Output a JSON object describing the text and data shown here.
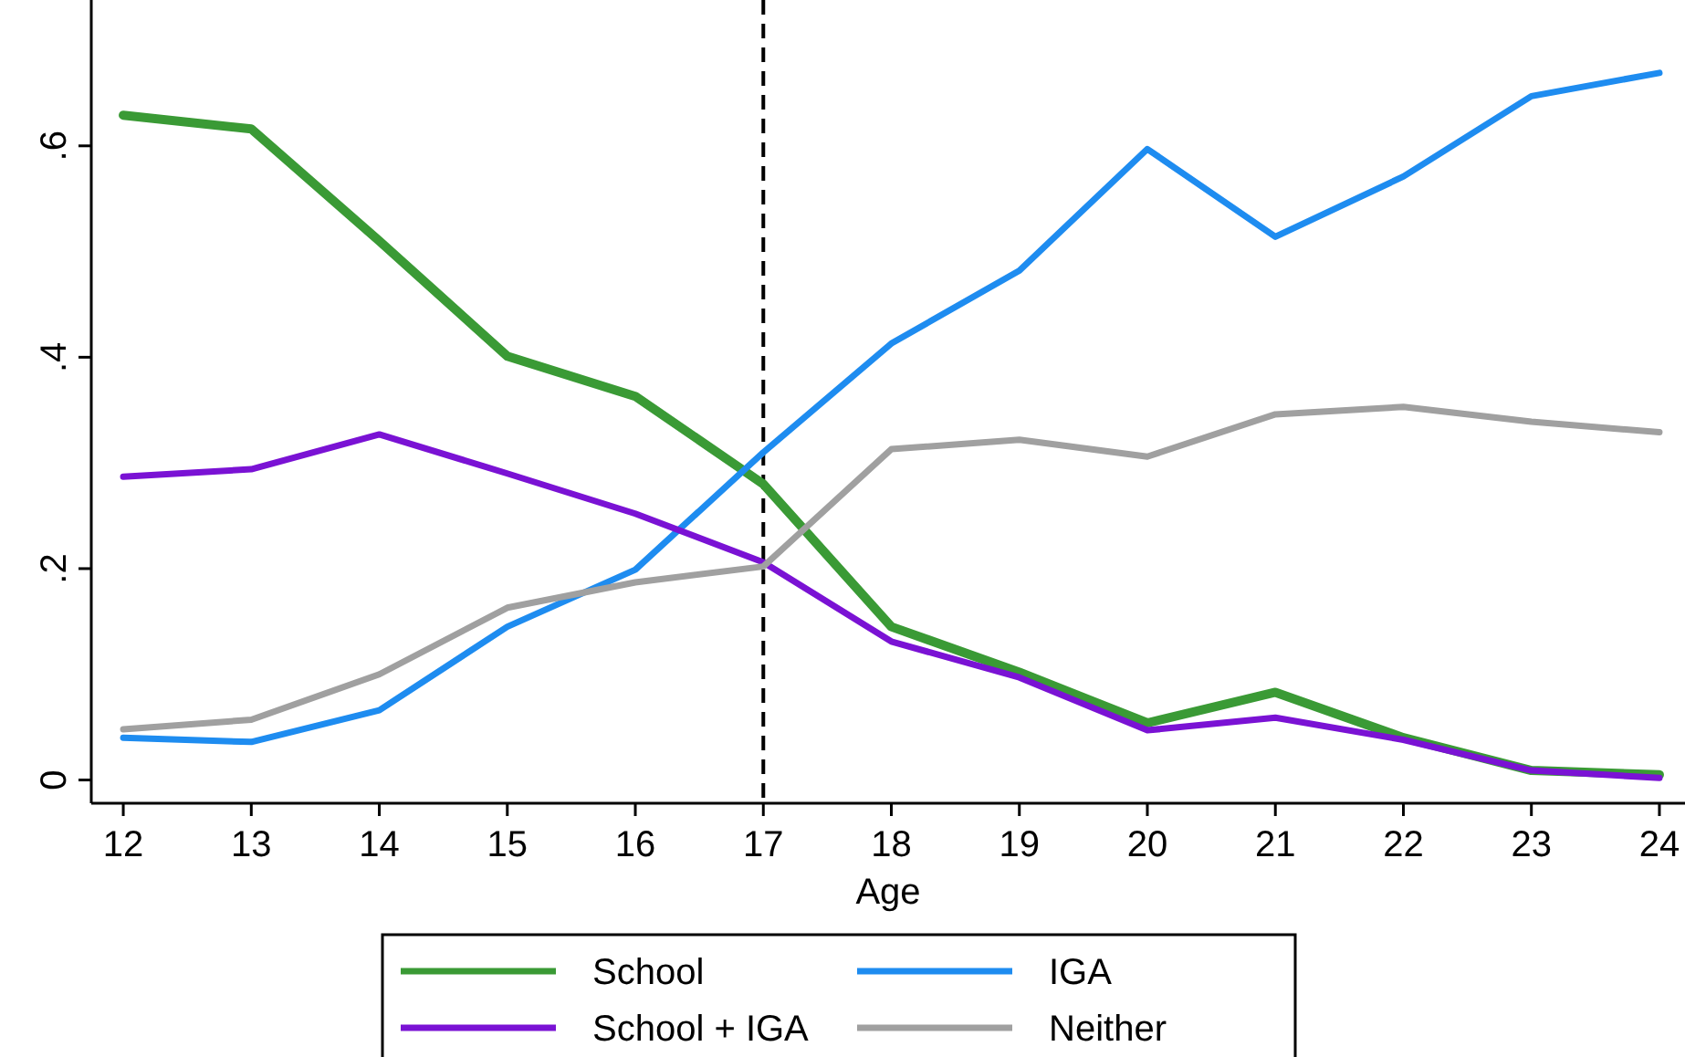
{
  "chart_data": {
    "type": "line",
    "xlabel": "Age",
    "x": [
      12,
      13,
      14,
      15,
      16,
      17,
      18,
      19,
      20,
      21,
      22,
      23,
      24
    ],
    "xlim": [
      11.75,
      24.2
    ],
    "xticks": [
      12,
      13,
      14,
      15,
      16,
      17,
      18,
      19,
      20,
      21,
      22,
      23,
      24
    ],
    "ylim": [
      -0.022,
      0.738
    ],
    "yticks": [
      {
        "value": 0,
        "label": "0"
      },
      {
        "value": 0.2,
        "label": ".2"
      },
      {
        "value": 0.4,
        "label": ".4"
      },
      {
        "value": 0.6,
        "label": ".6"
      }
    ],
    "grid": false,
    "legend": "bottom",
    "marker": "none",
    "line_style": "solid",
    "ref_lines": [
      {
        "axis": "x",
        "value": 17,
        "color": "#000000",
        "line_style": "dashed"
      }
    ],
    "series": [
      {
        "name": "School",
        "color": "#3a9a35",
        "values": [
          0.629,
          0.616,
          0.51,
          0.401,
          0.363,
          0.28,
          0.145,
          0.102,
          0.054,
          0.083,
          0.04,
          0.009,
          0.005
        ]
      },
      {
        "name": "IGA",
        "color": "#1e8cf0",
        "values": [
          0.04,
          0.036,
          0.066,
          0.145,
          0.199,
          0.31,
          0.413,
          0.482,
          0.597,
          0.514,
          0.571,
          0.647,
          0.669
        ]
      },
      {
        "name": "School + IGA",
        "color": "#7a12d4",
        "values": [
          0.287,
          0.294,
          0.327,
          0.29,
          0.252,
          0.206,
          0.131,
          0.097,
          0.047,
          0.059,
          0.038,
          0.009,
          0.002
        ]
      },
      {
        "name": "Neither",
        "color": "#a0a0a0",
        "values": [
          0.048,
          0.057,
          0.1,
          0.163,
          0.187,
          0.202,
          0.313,
          0.322,
          0.306,
          0.346,
          0.353,
          0.339,
          0.329
        ]
      }
    ]
  }
}
